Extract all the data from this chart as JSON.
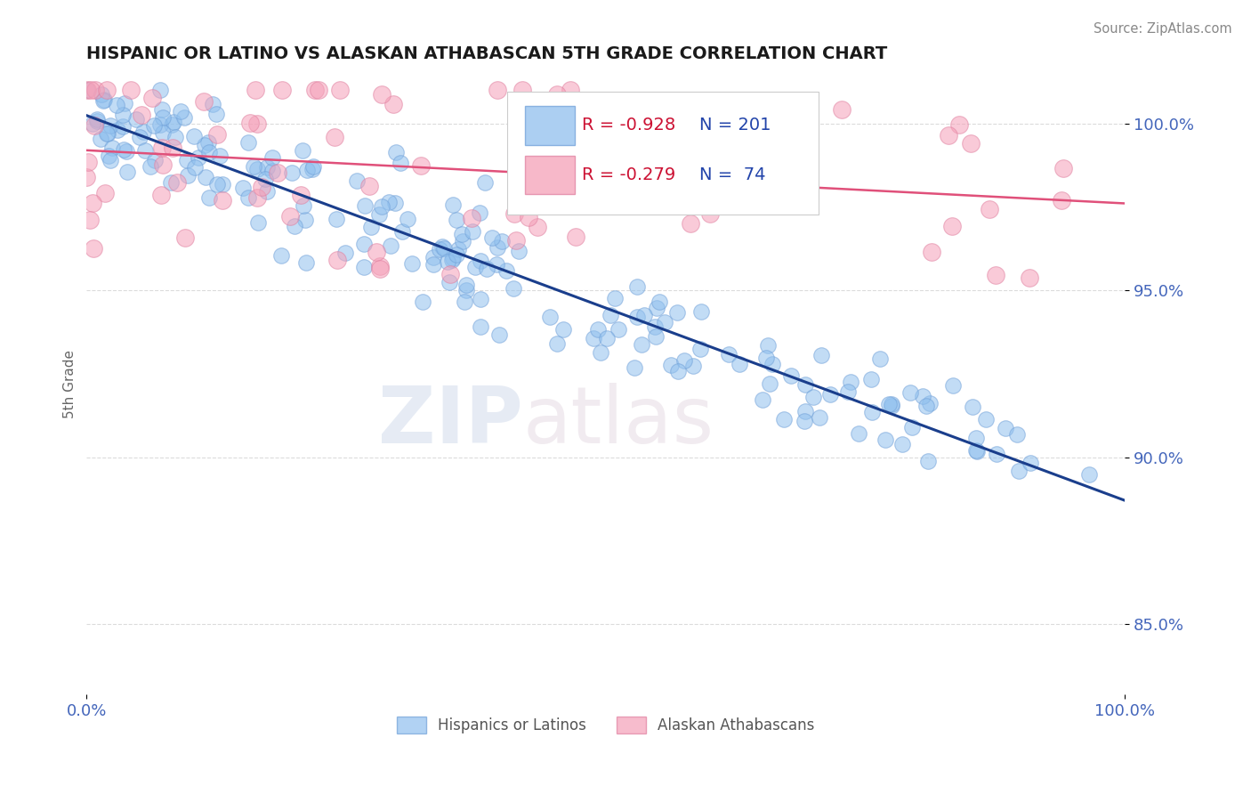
{
  "title": "HISPANIC OR LATINO VS ALASKAN ATHABASCAN 5TH GRADE CORRELATION CHART",
  "source": "Source: ZipAtlas.com",
  "ylabel": "5th Grade",
  "x_tick_labels": [
    "0.0%",
    "100.0%"
  ],
  "y_tick_values": [
    0.85,
    0.9,
    0.95,
    1.0
  ],
  "legend_labels": [
    "Hispanics or Latinos",
    "Alaskan Athabascans"
  ],
  "blue_R": "-0.928",
  "blue_N": "201",
  "pink_R": "-0.279",
  "pink_N": "74",
  "blue_color": "#90C0EE",
  "pink_color": "#F5A0B8",
  "blue_edge_color": "#70A0D8",
  "pink_edge_color": "#E080A0",
  "blue_line_color": "#1A3E8C",
  "pink_line_color": "#E0507A",
  "watermark_zip": "ZIP",
  "watermark_atlas": "atlas",
  "title_color": "#1A1A1A",
  "axis_label_color": "#4466BB",
  "legend_r_color": "#CC1133",
  "legend_n_color": "#2244AA",
  "grid_color": "#CCCCCC",
  "xlim": [
    0.0,
    1.0
  ],
  "ylim": [
    0.829,
    1.015
  ],
  "blue_seed": 12,
  "pink_seed": 99,
  "N_blue": 201,
  "N_pink": 74,
  "blue_intercept": 1.002,
  "blue_slope": -0.115,
  "blue_noise": 0.008,
  "pink_intercept": 0.993,
  "pink_slope": -0.022,
  "pink_noise": 0.018
}
